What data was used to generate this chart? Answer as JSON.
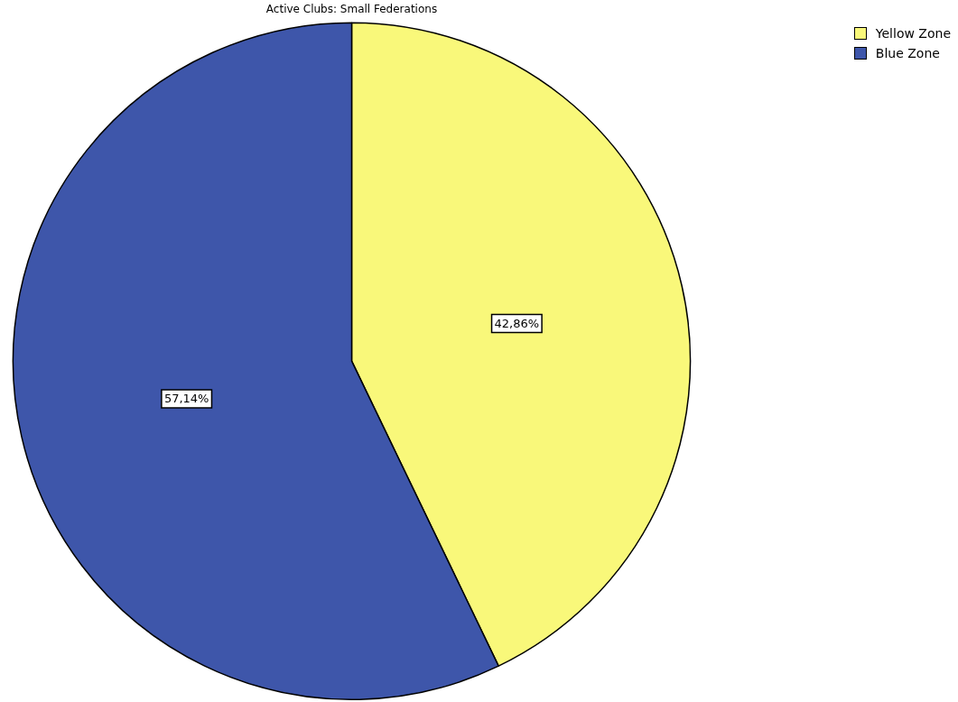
{
  "chart_data": {
    "type": "pie",
    "title": "Active Clubs: Small Federations",
    "categories": [
      "Yellow Zone",
      "Blue Zone"
    ],
    "values": [
      42.86,
      57.14
    ],
    "value_labels": [
      "42,86%",
      "57,14%"
    ],
    "colors": [
      "#f9f87a",
      "#3e56aa"
    ],
    "legend": "top right"
  }
}
